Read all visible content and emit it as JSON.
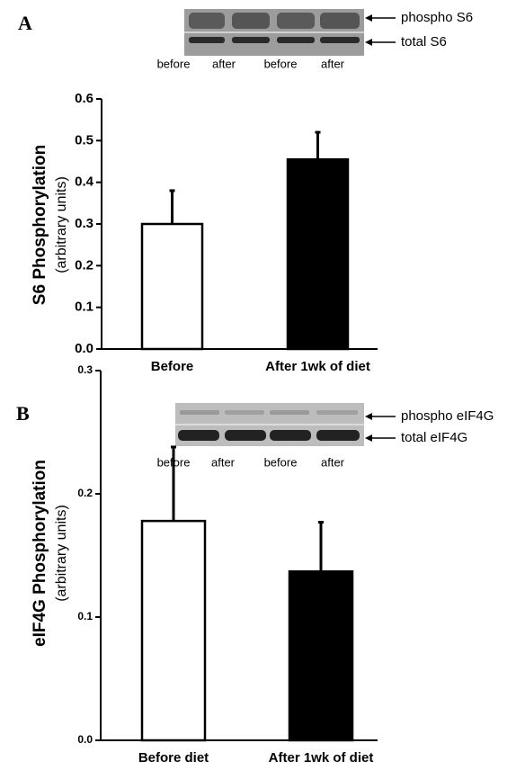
{
  "chart_data": [
    {
      "type": "bar",
      "panel": "A",
      "blot_labels": [
        "phospho S6",
        "total S6"
      ],
      "lane_labels": [
        "before",
        "after",
        "before",
        "after"
      ],
      "ylabel": [
        "S6 Phosphorylation",
        "(arbitrary units)"
      ],
      "categories": [
        "Before",
        "After 1wk of diet"
      ],
      "values": [
        0.3,
        0.455
      ],
      "errors": [
        0.08,
        0.065
      ],
      "colors": [
        "#ffffff",
        "#000000"
      ],
      "ylim": [
        0,
        0.6
      ],
      "yticks": [
        {
          "value": 0,
          "label": "0.0"
        },
        0.1,
        0.2,
        0.3,
        0.4,
        0.5,
        0.6
      ]
    },
    {
      "type": "bar",
      "panel": "B",
      "blot_labels": [
        "phospho eIF4G",
        "total eIF4G"
      ],
      "lane_labels": [
        "before",
        "after",
        "before",
        "after"
      ],
      "ylabel": [
        "eIF4G Phosphorylation",
        "(arbitrary units)"
      ],
      "categories": [
        "Before diet",
        "After 1wk of diet"
      ],
      "values": [
        0.178,
        0.137
      ],
      "errors": [
        0.06,
        0.04
      ],
      "colors": [
        "#ffffff",
        "#000000"
      ],
      "ylim": [
        0,
        0.3
      ],
      "yticks": [
        {
          "value": 0,
          "label": "0.0"
        },
        0.1,
        0.2,
        0.3
      ]
    }
  ]
}
